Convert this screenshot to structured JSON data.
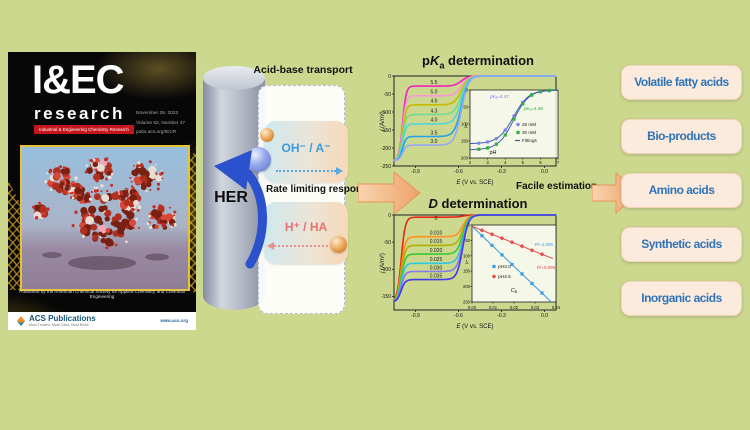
{
  "background": "#cbd88e",
  "cover": {
    "masthead": "I&EC",
    "masthead_sub": "research",
    "strip": "Industrial & Engineering Chemistry Research",
    "meta_lines": [
      "November 29, 2023",
      "Volume 62, Number 47",
      "pubs.acs.org/IECR"
    ],
    "footer": "Published by the American Chemical Society for Applied Chemistry and Chemical Engineering",
    "acs_logo": "ACS Publications",
    "acs_tagline": "Most Trusted. Most Cited. Most Read.",
    "acs_url": "www.acs.org"
  },
  "scheme": {
    "transport_title": "Acid-base transport",
    "electrode": "HER",
    "anion_route": "OH⁻ / A⁻",
    "acid_route": "H⁺ / HA",
    "response_label": "Rate limiting response",
    "estimation_label": "Facile estimation"
  },
  "acid_boxes": [
    "Volatile fatty acids",
    "Bio-products",
    "Amino acids",
    "Synthetic acids",
    "Inorganic acids"
  ],
  "colors": {
    "background": "#cbd88e",
    "box_fill": "#fceadd",
    "box_border": "#f5d2ba",
    "box_text": "#2e74b8",
    "arrow_orange": "#eea269",
    "anion_text": "#3b9ad8",
    "acid_text": "#e87070",
    "her_arrow": "#2b52cc",
    "cover_accent_red": "#c4161c",
    "cover_gold": "#e6c235"
  },
  "chart_data": [
    {
      "type": "line",
      "title": {
        "pre": "p",
        "it": "K",
        "sub": "a",
        "rest": " determination"
      },
      "xlabel": {
        "it": "E",
        "rest": " (V vs. SCE)"
      },
      "ylabel": "j (A/m²)",
      "xlim": [
        -1.05,
        0.08
      ],
      "ylim": [
        -250,
        0
      ],
      "xticks": [
        {
          "v": -0.9,
          "l": "-0.9"
        },
        {
          "v": -0.6,
          "l": "-0.6"
        },
        {
          "v": -0.3,
          "l": "-0.3"
        },
        {
          "v": 0.0,
          "l": "0.0"
        }
      ],
      "yticks": [
        {
          "v": 0,
          "l": "0"
        },
        {
          "v": -50,
          "l": "-50"
        },
        {
          "v": -100,
          "l": "-100"
        },
        {
          "v": -150,
          "l": "-150"
        },
        {
          "v": -200,
          "l": "-200"
        },
        {
          "v": -250,
          "l": "-250"
        }
      ],
      "floor": -235,
      "series": [
        {
          "label": "5.5",
          "color": "#f520c0",
          "plateau": -28
        },
        {
          "label": "5.0",
          "color": "#f898d8",
          "plateau": -55
        },
        {
          "label": "4.6",
          "color": "#c8ba00",
          "plateau": -80
        },
        {
          "label": "4.3",
          "color": "#70dc90",
          "plateau": -107
        },
        {
          "label": "4.0",
          "color": "#50d8d8",
          "plateau": -133
        },
        {
          "label": "3.5",
          "color": "#28a0e8",
          "plateau": -168
        },
        {
          "label": "3.0",
          "color": "#98a8f8",
          "plateau": -192
        }
      ],
      "inset": {
        "kind": "sigmoid",
        "xlabel": "pH",
        "ylabel": {
          "it": "j",
          "sub": "L"
        },
        "xlim": [
          2,
          7
        ],
        "ylim": [
          200,
          0
        ],
        "xticks": [
          "2",
          "3",
          "4",
          "5",
          "6",
          "7"
        ],
        "yticks": [
          "0",
          "50",
          "100",
          "150",
          "200"
        ],
        "fit_color": "#3a5fa8",
        "fit_label": "Fittings",
        "series": [
          {
            "label": "25 mM",
            "marker": "circle",
            "color": "#8080f0",
            "max": 158,
            "pka": 4.47
          },
          {
            "label": "30 mM",
            "marker": "square",
            "color": "#2fae3a",
            "max": 176,
            "pka": 4.48
          }
        ],
        "annotations": [
          {
            "text": "pKₐ=4.47",
            "color": "#7a7af2"
          },
          {
            "text": "pKₐ=4.48",
            "color": "#2fae3a"
          }
        ]
      }
    },
    {
      "type": "line",
      "title": {
        "pre": "",
        "it": "D",
        "sub": "",
        "rest": " determination"
      },
      "xlabel": {
        "it": "E",
        "rest": " (V vs. SCE)"
      },
      "ylabel": "j (A/m²)",
      "xlim": [
        -1.05,
        0.08
      ],
      "ylim": [
        -175,
        0
      ],
      "xticks": [
        {
          "v": -0.9,
          "l": "-0.9"
        },
        {
          "v": -0.6,
          "l": "-0.6"
        },
        {
          "v": -0.3,
          "l": "-0.3"
        },
        {
          "v": 0.0,
          "l": "0.0"
        }
      ],
      "yticks": [
        {
          "v": 0,
          "l": "0"
        },
        {
          "v": -50,
          "l": "-50"
        },
        {
          "v": -100,
          "l": "-100"
        },
        {
          "v": -150,
          "l": "-150"
        }
      ],
      "floor": -160,
      "series": [
        {
          "label": "0",
          "color": "#e82818",
          "plateau": -4
        },
        {
          "label": "0.010",
          "color": "#ff9020",
          "plateau": -40
        },
        {
          "label": "0.015",
          "color": "#b0b000",
          "plateau": -56
        },
        {
          "label": "0.020",
          "color": "#38c838",
          "plateau": -72
        },
        {
          "label": "0.025",
          "color": "#30c8e0",
          "plateau": -89
        },
        {
          "label": "0.030",
          "color": "#8a78ee",
          "plateau": -104
        },
        {
          "label": "0.035",
          "color": "#4438e8",
          "plateau": -119
        }
      ],
      "inset": {
        "kind": "linear",
        "xlabel": {
          "it": "C",
          "sub": "B"
        },
        "ylabel": {
          "it": "j",
          "sub": "L"
        },
        "xlim": [
          0,
          0.042
        ],
        "ylim": [
          250,
          0
        ],
        "xticks": [
          "0.00",
          "0.01",
          "0.02",
          "0.03",
          "0.04"
        ],
        "yticks": [
          "0",
          "50",
          "100",
          "150",
          "200",
          "250"
        ],
        "series": [
          {
            "label": "pH3.0",
            "marker": "square",
            "color": "#3b9ae0",
            "slope": 6200,
            "intercept": 4,
            "r2": "R²=1.000"
          },
          {
            "label": "pH4.5",
            "marker": "diamond",
            "color": "#e84b4b",
            "slope": 2600,
            "intercept": 4,
            "r2": "R²=0.999"
          }
        ]
      }
    }
  ]
}
